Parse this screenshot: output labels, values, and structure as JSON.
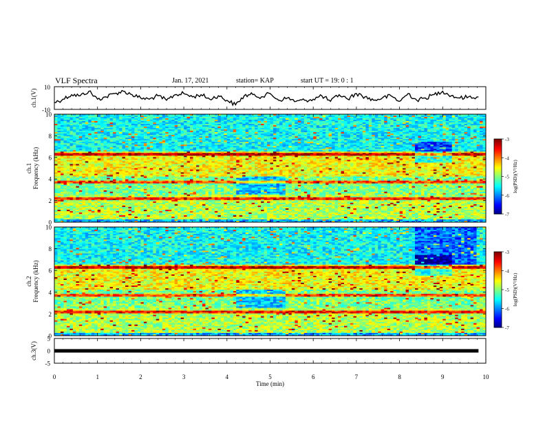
{
  "header": {
    "title": "VLF Spectra",
    "date": "Jan. 17, 2021",
    "station": "station= KAP",
    "start": "start  UT =   19: 0  : 1"
  },
  "chart_data": [
    {
      "type": "line",
      "panel": "ch1-waveform",
      "ylabel": "ch.1(V)",
      "ylim": [
        -10,
        10
      ],
      "yticks": [
        "10",
        "-10"
      ],
      "x": [
        0.0,
        0.2,
        0.4,
        0.6,
        0.8,
        1.0,
        1.2,
        1.4,
        1.6,
        1.8,
        2.0,
        2.2,
        2.4,
        2.6,
        2.8,
        3.0,
        3.2,
        3.4,
        3.6,
        3.8,
        4.0,
        4.2,
        4.4,
        4.6,
        4.8,
        5.0,
        5.2,
        5.4,
        5.6,
        5.8,
        6.0,
        6.2,
        6.4,
        6.6,
        6.8,
        7.0,
        7.2,
        7.4,
        7.6,
        7.8,
        8.0,
        8.2,
        8.4,
        8.6,
        8.8,
        9.0,
        9.2,
        9.4,
        9.6,
        9.83
      ],
      "y": [
        -4,
        -1,
        3,
        2,
        6,
        -1,
        1,
        4,
        6,
        3,
        0,
        -1,
        2,
        -2,
        3,
        4,
        1,
        3,
        -1,
        2,
        -2,
        -6,
        2,
        3,
        1,
        4,
        -2,
        0,
        -3,
        -2,
        -1,
        2,
        -3,
        3,
        -1,
        4,
        1,
        -2,
        0,
        2,
        -3,
        4,
        -2,
        0,
        3,
        6,
        2,
        0,
        1,
        1
      ]
    },
    {
      "type": "heatmap",
      "panel": "ch1-spectrogram",
      "ylabel": "ch.1\nFrequency (kHz)",
      "ylim": [
        0,
        10
      ],
      "yticks": [
        "0",
        "2",
        "4",
        "6",
        "8",
        "10"
      ],
      "colorbar": {
        "label": "log(PSD)(V²/Hz)",
        "range": [
          -7,
          -3
        ],
        "ticks": [
          "-3",
          "-4",
          "-5",
          "-6",
          "-7"
        ]
      }
    },
    {
      "type": "heatmap",
      "panel": "ch2-spectrogram",
      "ylabel": "ch.2\nFrequency (kHz)",
      "ylim": [
        0,
        10
      ],
      "yticks": [
        "0",
        "2",
        "4",
        "6",
        "8",
        "10"
      ],
      "colorbar": {
        "label": "log(PSD)(V²/Hz)",
        "range": [
          -7,
          -3
        ],
        "ticks": [
          "-3",
          "-4",
          "-5",
          "-6",
          "-7"
        ]
      }
    },
    {
      "type": "line",
      "panel": "ch3-waveform",
      "ylabel": "ch.3(V)",
      "ylim": [
        -5,
        5
      ],
      "yticks": [
        "5",
        "0",
        "-5"
      ],
      "band": [
        -0.7,
        0.7
      ]
    }
  ],
  "time_axis": {
    "xlabel": "Time  (min)",
    "xlim": [
      0,
      10
    ],
    "ticks": [
      "0",
      "1",
      "2",
      "3",
      "4",
      "5",
      "6",
      "7",
      "8",
      "9",
      "10"
    ]
  },
  "colors": {
    "axis": "#000000",
    "waveform": "#000000",
    "background": "#ffffff"
  }
}
